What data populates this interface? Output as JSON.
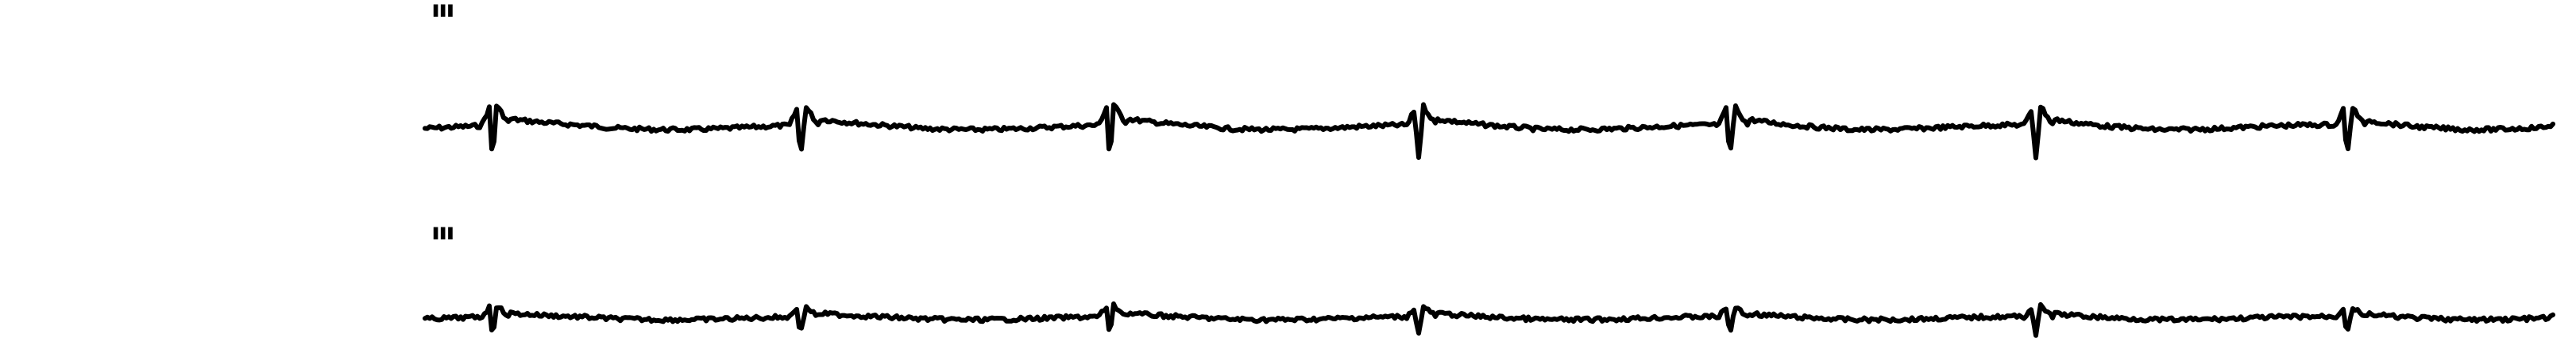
{
  "leads": [
    {
      "label": "III"
    },
    {
      "label": "III"
    }
  ],
  "colors": {
    "trace": "#000000",
    "background": "#ffffff"
  }
}
